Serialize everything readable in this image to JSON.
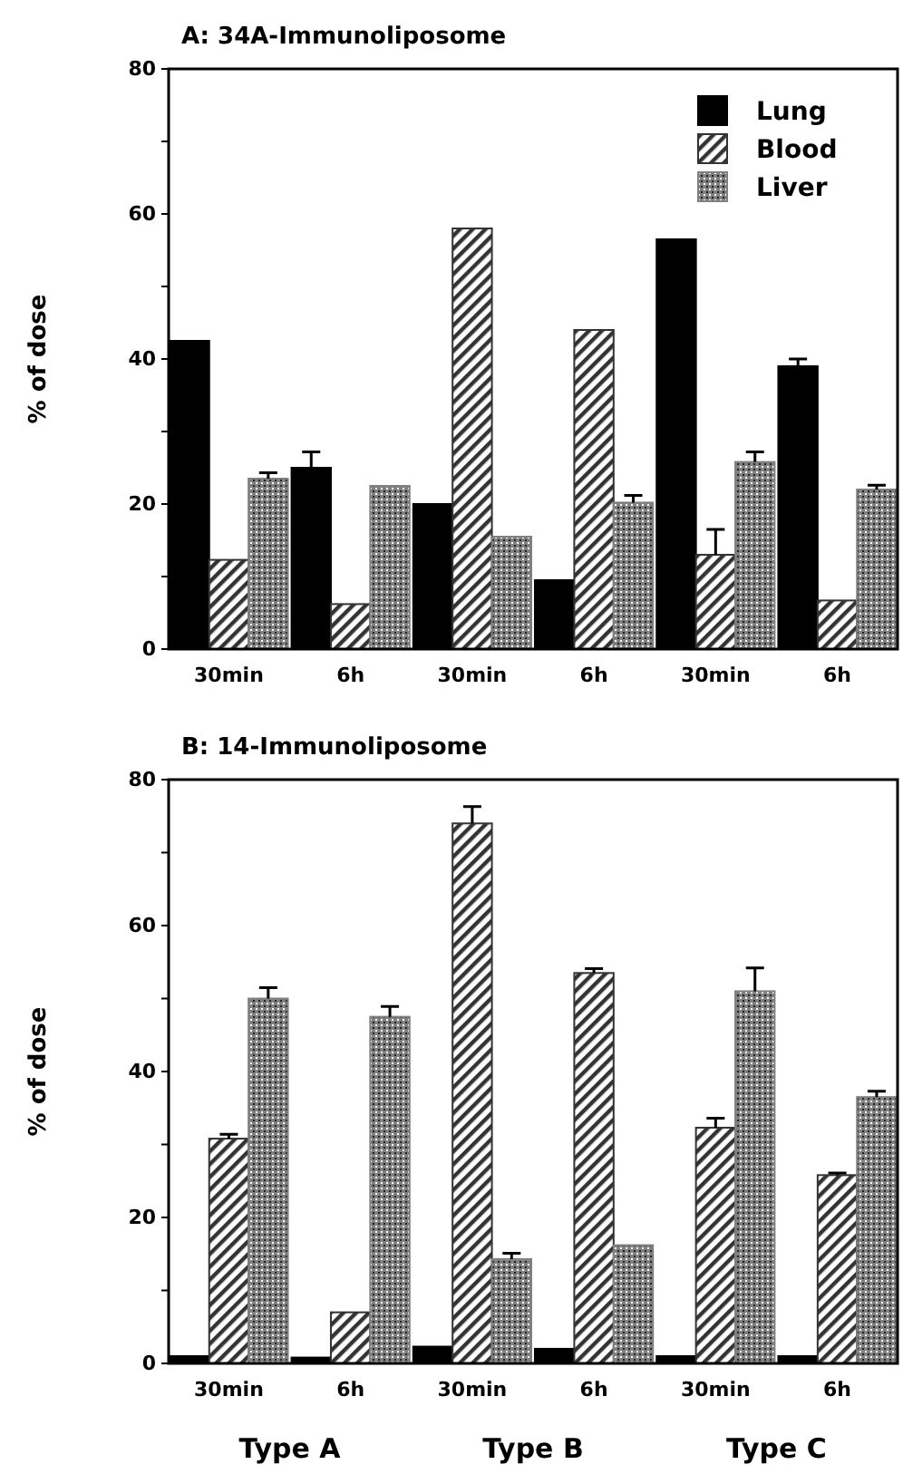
{
  "chart_data": [
    {
      "type": "bar",
      "title": "A: 34A-Immunoliposome",
      "ylabel": "% of dose",
      "categories": [
        "30min",
        "6h",
        "30min",
        "6h",
        "30min",
        "6h"
      ],
      "ylim": [
        0,
        80
      ],
      "yticks": [
        0,
        {
          "value": 10,
          "label": null
        },
        20,
        {
          "value": 30,
          "label": null
        },
        40,
        {
          "value": 50,
          "label": null
        },
        60,
        {
          "value": 70,
          "label": null
        },
        80
      ],
      "legend": "top right",
      "grid": false,
      "series": [
        {
          "name": "Lung",
          "color": "#000000",
          "values": [
            42.5,
            25,
            20,
            9.5,
            56.5,
            39
          ],
          "errors": [
            null,
            2.2,
            null,
            null,
            null,
            1
          ]
        },
        {
          "name": "Blood",
          "color": "#333333",
          "values": [
            12.3,
            6.2,
            58,
            44,
            13,
            6.7
          ],
          "errors": [
            null,
            null,
            null,
            null,
            3.5,
            null
          ]
        },
        {
          "name": "Liver",
          "color": "#808080",
          "values": [
            23.5,
            22.5,
            15.5,
            20.2,
            25.8,
            22
          ],
          "errors": [
            0.8,
            null,
            null,
            1,
            1.4,
            0.6
          ]
        }
      ]
    },
    {
      "type": "bar",
      "title": "B: 14-Immunoliposome",
      "ylabel": "% of dose",
      "categories": [
        "30min",
        "6h",
        "30min",
        "6h",
        "30min",
        "6h"
      ],
      "ylim": [
        0,
        80
      ],
      "yticks": [
        0,
        {
          "value": 10,
          "label": null
        },
        20,
        {
          "value": 30,
          "label": null
        },
        40,
        {
          "value": 50,
          "label": null
        },
        60,
        {
          "value": 70,
          "label": null
        },
        80
      ],
      "legend": false,
      "grid": false,
      "annotations": [
        "Type A",
        "Type B",
        "Type C"
      ],
      "series": [
        {
          "color": "#000000",
          "values": [
            1,
            0.8,
            2.3,
            2,
            1,
            1
          ],
          "errors": [
            null,
            null,
            null,
            null,
            null,
            null
          ]
        },
        {
          "color": "#333333",
          "values": [
            30.8,
            7,
            74,
            53.5,
            32.3,
            25.8
          ],
          "errors": [
            0.6,
            null,
            2.3,
            0.6,
            1.3,
            0.3
          ]
        },
        {
          "color": "#808080",
          "values": [
            50,
            47.5,
            14.3,
            16.2,
            51,
            36.5
          ],
          "errors": [
            1.5,
            1.4,
            0.8,
            null,
            3.2,
            0.8
          ]
        }
      ]
    }
  ]
}
